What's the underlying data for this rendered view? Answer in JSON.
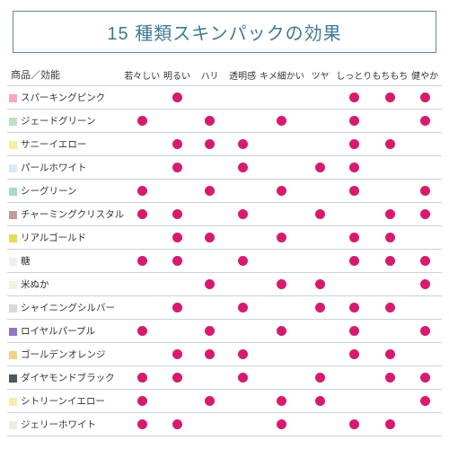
{
  "title": "15 種類スキンパックの効果",
  "title_color": "#3d7a96",
  "header_label": "商品／効能",
  "dot_color": "#d61b6f",
  "border_color": "#c8d4da",
  "columns": [
    "若々しい",
    "明るい",
    "ハリ",
    "透明感",
    "キメ細かい",
    "ツヤ",
    "しっとり",
    "もちもち",
    "健やか"
  ],
  "products": [
    {
      "name": "スパーキングピンク",
      "swatch": "#f2a8c4",
      "marks": [
        0,
        1,
        0,
        0,
        0,
        0,
        1,
        1,
        1
      ]
    },
    {
      "name": "ジェードグリーン",
      "swatch": "#bfe0c8",
      "marks": [
        1,
        0,
        1,
        0,
        1,
        0,
        1,
        0,
        1
      ]
    },
    {
      "name": "サニーイエロー",
      "swatch": "#f5efa0",
      "marks": [
        0,
        1,
        1,
        1,
        0,
        0,
        1,
        1,
        0
      ]
    },
    {
      "name": "パールホワイト",
      "swatch": "#d6eef2",
      "marks": [
        0,
        1,
        0,
        1,
        0,
        1,
        1,
        0,
        0
      ]
    },
    {
      "name": "シーグリーン",
      "swatch": "#a6d9d2",
      "marks": [
        1,
        0,
        1,
        0,
        1,
        0,
        1,
        0,
        1
      ]
    },
    {
      "name": "チャーミングクリスタル",
      "swatch": "#c49a9a",
      "marks": [
        1,
        1,
        0,
        1,
        0,
        1,
        0,
        1,
        1
      ]
    },
    {
      "name": "リアルゴールド",
      "swatch": "#e8d95a",
      "marks": [
        0,
        1,
        1,
        0,
        1,
        0,
        1,
        1,
        0
      ]
    },
    {
      "name": "糖",
      "swatch": "#f0efe8",
      "marks": [
        1,
        1,
        0,
        1,
        0,
        0,
        1,
        1,
        1
      ]
    },
    {
      "name": "米ぬか",
      "swatch": "#f3f0e2",
      "marks": [
        0,
        0,
        1,
        0,
        1,
        1,
        0,
        0,
        1
      ]
    },
    {
      "name": "シャイニングシルバー",
      "swatch": "#d2d9dd",
      "marks": [
        0,
        1,
        0,
        1,
        0,
        1,
        1,
        1,
        0
      ]
    },
    {
      "name": "ロイヤルパープル",
      "swatch": "#8f7ac2",
      "marks": [
        1,
        0,
        1,
        0,
        1,
        0,
        1,
        0,
        1
      ]
    },
    {
      "name": "ゴールデンオレンジ",
      "swatch": "#f0d488",
      "marks": [
        0,
        1,
        1,
        1,
        0,
        0,
        1,
        1,
        0
      ]
    },
    {
      "name": "ダイヤモンドブラック",
      "swatch": "#4a5a62",
      "marks": [
        1,
        1,
        0,
        1,
        0,
        1,
        0,
        1,
        1
      ]
    },
    {
      "name": "シトリーンイエロー",
      "swatch": "#f2edb0",
      "marks": [
        1,
        0,
        1,
        0,
        1,
        1,
        0,
        0,
        1
      ]
    },
    {
      "name": "ジェリーホワイト",
      "swatch": "#f0ece0",
      "marks": [
        1,
        1,
        0,
        0,
        1,
        0,
        1,
        1,
        0
      ]
    }
  ]
}
